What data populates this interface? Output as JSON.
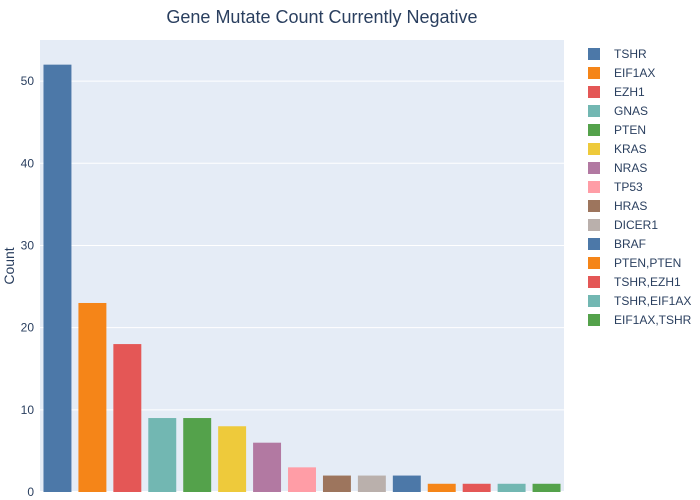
{
  "chart_data": {
    "type": "bar",
    "title": "Gene Mutate Count Currently Negative",
    "xlabel": "",
    "ylabel": "Count",
    "ylim": [
      0,
      55
    ],
    "yticks": [
      0,
      10,
      20,
      30,
      40,
      50
    ],
    "grid": true,
    "legend_position": "right",
    "categories": [
      "TSHR",
      "EIF1AX",
      "EZH1",
      "GNAS",
      "PTEN",
      "KRAS",
      "NRAS",
      "TP53",
      "HRAS",
      "DICER1",
      "BRAF",
      "PTEN,PTEN",
      "TSHR,EZH1",
      "TSHR,EIF1AX",
      "EIF1AX,TSHR"
    ],
    "values": [
      52,
      23,
      18,
      9,
      9,
      8,
      6,
      3,
      2,
      2,
      2,
      1,
      1,
      1,
      1
    ],
    "colors": [
      "#4c78a8",
      "#f58518",
      "#e45756",
      "#72b7b2",
      "#54a24b",
      "#eeca3b",
      "#b279a2",
      "#ff9da6",
      "#9d755d",
      "#bab0ac",
      "#4c78a8",
      "#f58518",
      "#e45756",
      "#72b7b2",
      "#54a24b"
    ],
    "plot_background": "#e5ecf6"
  }
}
